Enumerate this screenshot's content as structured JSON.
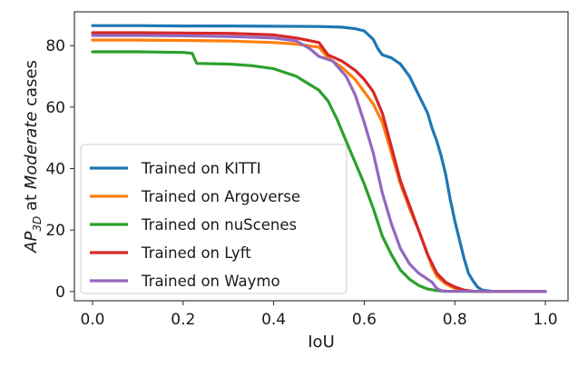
{
  "chart_data": {
    "type": "line",
    "title": "",
    "xlabel": "IoU",
    "ylabel": {
      "base": "AP",
      "subscript": "3D",
      "middle": " at ",
      "italic": "Moderate",
      "suffix": " cases"
    },
    "xlim": [
      -0.04,
      1.05
    ],
    "ylim": [
      -3,
      91
    ],
    "xticks": [
      0.0,
      0.2,
      0.4,
      0.6,
      0.8,
      1.0
    ],
    "xtick_labels": [
      "0.0",
      "0.2",
      "0.4",
      "0.6",
      "0.8",
      "1.0"
    ],
    "yticks": [
      0,
      20,
      40,
      60,
      80
    ],
    "ytick_labels": [
      "0",
      "20",
      "40",
      "60",
      "80"
    ],
    "grid": false,
    "legend_position": "lower-left",
    "series": [
      {
        "name": "Trained on KITTI",
        "color": "#1f77b4",
        "points": [
          [
            0.0,
            86.5
          ],
          [
            0.1,
            86.5
          ],
          [
            0.2,
            86.4
          ],
          [
            0.3,
            86.4
          ],
          [
            0.4,
            86.3
          ],
          [
            0.5,
            86.2
          ],
          [
            0.55,
            86.0
          ],
          [
            0.58,
            85.5
          ],
          [
            0.6,
            84.8
          ],
          [
            0.62,
            82.0
          ],
          [
            0.63,
            79.0
          ],
          [
            0.64,
            77.0
          ],
          [
            0.66,
            76.0
          ],
          [
            0.68,
            74.0
          ],
          [
            0.7,
            70.0
          ],
          [
            0.72,
            64.0
          ],
          [
            0.74,
            58.0
          ],
          [
            0.75,
            53.0
          ],
          [
            0.76,
            49.0
          ],
          [
            0.77,
            44.0
          ],
          [
            0.78,
            38.0
          ],
          [
            0.79,
            30.0
          ],
          [
            0.8,
            23.0
          ],
          [
            0.81,
            17.0
          ],
          [
            0.82,
            11.0
          ],
          [
            0.83,
            6.0
          ],
          [
            0.84,
            3.5
          ],
          [
            0.85,
            1.5
          ],
          [
            0.86,
            0.5
          ],
          [
            0.88,
            0.1
          ],
          [
            1.0,
            0.0
          ]
        ]
      },
      {
        "name": "Trained on Argoverse",
        "color": "#ff7f0e",
        "points": [
          [
            0.0,
            81.8
          ],
          [
            0.1,
            81.8
          ],
          [
            0.2,
            81.7
          ],
          [
            0.3,
            81.5
          ],
          [
            0.4,
            81.0
          ],
          [
            0.45,
            80.5
          ],
          [
            0.5,
            79.5
          ],
          [
            0.52,
            76.0
          ],
          [
            0.55,
            73.0
          ],
          [
            0.58,
            69.0
          ],
          [
            0.6,
            65.0
          ],
          [
            0.62,
            61.0
          ],
          [
            0.64,
            55.0
          ],
          [
            0.66,
            45.0
          ],
          [
            0.68,
            35.0
          ],
          [
            0.7,
            27.0
          ],
          [
            0.72,
            20.0
          ],
          [
            0.74,
            12.0
          ],
          [
            0.75,
            8.0
          ],
          [
            0.76,
            5.0
          ],
          [
            0.78,
            2.5
          ],
          [
            0.8,
            1.0
          ],
          [
            0.82,
            0.3
          ],
          [
            0.84,
            0.1
          ],
          [
            1.0,
            0.0
          ]
        ]
      },
      {
        "name": "Trained on nuScenes",
        "color": "#2ca02c",
        "points": [
          [
            0.0,
            78.0
          ],
          [
            0.1,
            78.0
          ],
          [
            0.2,
            77.8
          ],
          [
            0.22,
            77.5
          ],
          [
            0.23,
            74.2
          ],
          [
            0.3,
            74.0
          ],
          [
            0.35,
            73.5
          ],
          [
            0.4,
            72.5
          ],
          [
            0.45,
            70.0
          ],
          [
            0.5,
            65.5
          ],
          [
            0.52,
            62.0
          ],
          [
            0.54,
            56.0
          ],
          [
            0.56,
            49.0
          ],
          [
            0.58,
            42.0
          ],
          [
            0.6,
            35.0
          ],
          [
            0.62,
            27.0
          ],
          [
            0.64,
            18.0
          ],
          [
            0.66,
            12.0
          ],
          [
            0.68,
            7.0
          ],
          [
            0.7,
            4.0
          ],
          [
            0.72,
            2.0
          ],
          [
            0.74,
            0.8
          ],
          [
            0.76,
            0.3
          ],
          [
            0.78,
            0.1
          ],
          [
            1.0,
            0.0
          ]
        ]
      },
      {
        "name": "Trained on Lyft",
        "color": "#d62728",
        "points": [
          [
            0.0,
            84.2
          ],
          [
            0.1,
            84.2
          ],
          [
            0.2,
            84.1
          ],
          [
            0.3,
            84.0
          ],
          [
            0.4,
            83.5
          ],
          [
            0.45,
            82.5
          ],
          [
            0.5,
            81.0
          ],
          [
            0.52,
            77.0
          ],
          [
            0.55,
            75.0
          ],
          [
            0.58,
            72.0
          ],
          [
            0.6,
            69.0
          ],
          [
            0.62,
            65.0
          ],
          [
            0.64,
            58.0
          ],
          [
            0.66,
            47.0
          ],
          [
            0.68,
            36.0
          ],
          [
            0.7,
            28.0
          ],
          [
            0.72,
            20.0
          ],
          [
            0.74,
            12.0
          ],
          [
            0.76,
            6.0
          ],
          [
            0.78,
            3.0
          ],
          [
            0.8,
            1.5
          ],
          [
            0.82,
            0.5
          ],
          [
            0.84,
            0.1
          ],
          [
            1.0,
            0.0
          ]
        ]
      },
      {
        "name": "Trained on Waymo",
        "color": "#9467bd",
        "points": [
          [
            0.0,
            83.3
          ],
          [
            0.1,
            83.3
          ],
          [
            0.2,
            83.2
          ],
          [
            0.3,
            83.0
          ],
          [
            0.4,
            82.5
          ],
          [
            0.45,
            81.5
          ],
          [
            0.48,
            79.0
          ],
          [
            0.5,
            76.5
          ],
          [
            0.53,
            75.0
          ],
          [
            0.56,
            70.0
          ],
          [
            0.58,
            64.0
          ],
          [
            0.6,
            55.0
          ],
          [
            0.62,
            45.0
          ],
          [
            0.64,
            32.0
          ],
          [
            0.66,
            22.0
          ],
          [
            0.68,
            14.0
          ],
          [
            0.7,
            9.0
          ],
          [
            0.72,
            6.0
          ],
          [
            0.74,
            4.0
          ],
          [
            0.75,
            3.0
          ],
          [
            0.76,
            1.0
          ],
          [
            0.77,
            0.3
          ],
          [
            0.78,
            0.1
          ],
          [
            1.0,
            0.0
          ]
        ]
      }
    ]
  }
}
